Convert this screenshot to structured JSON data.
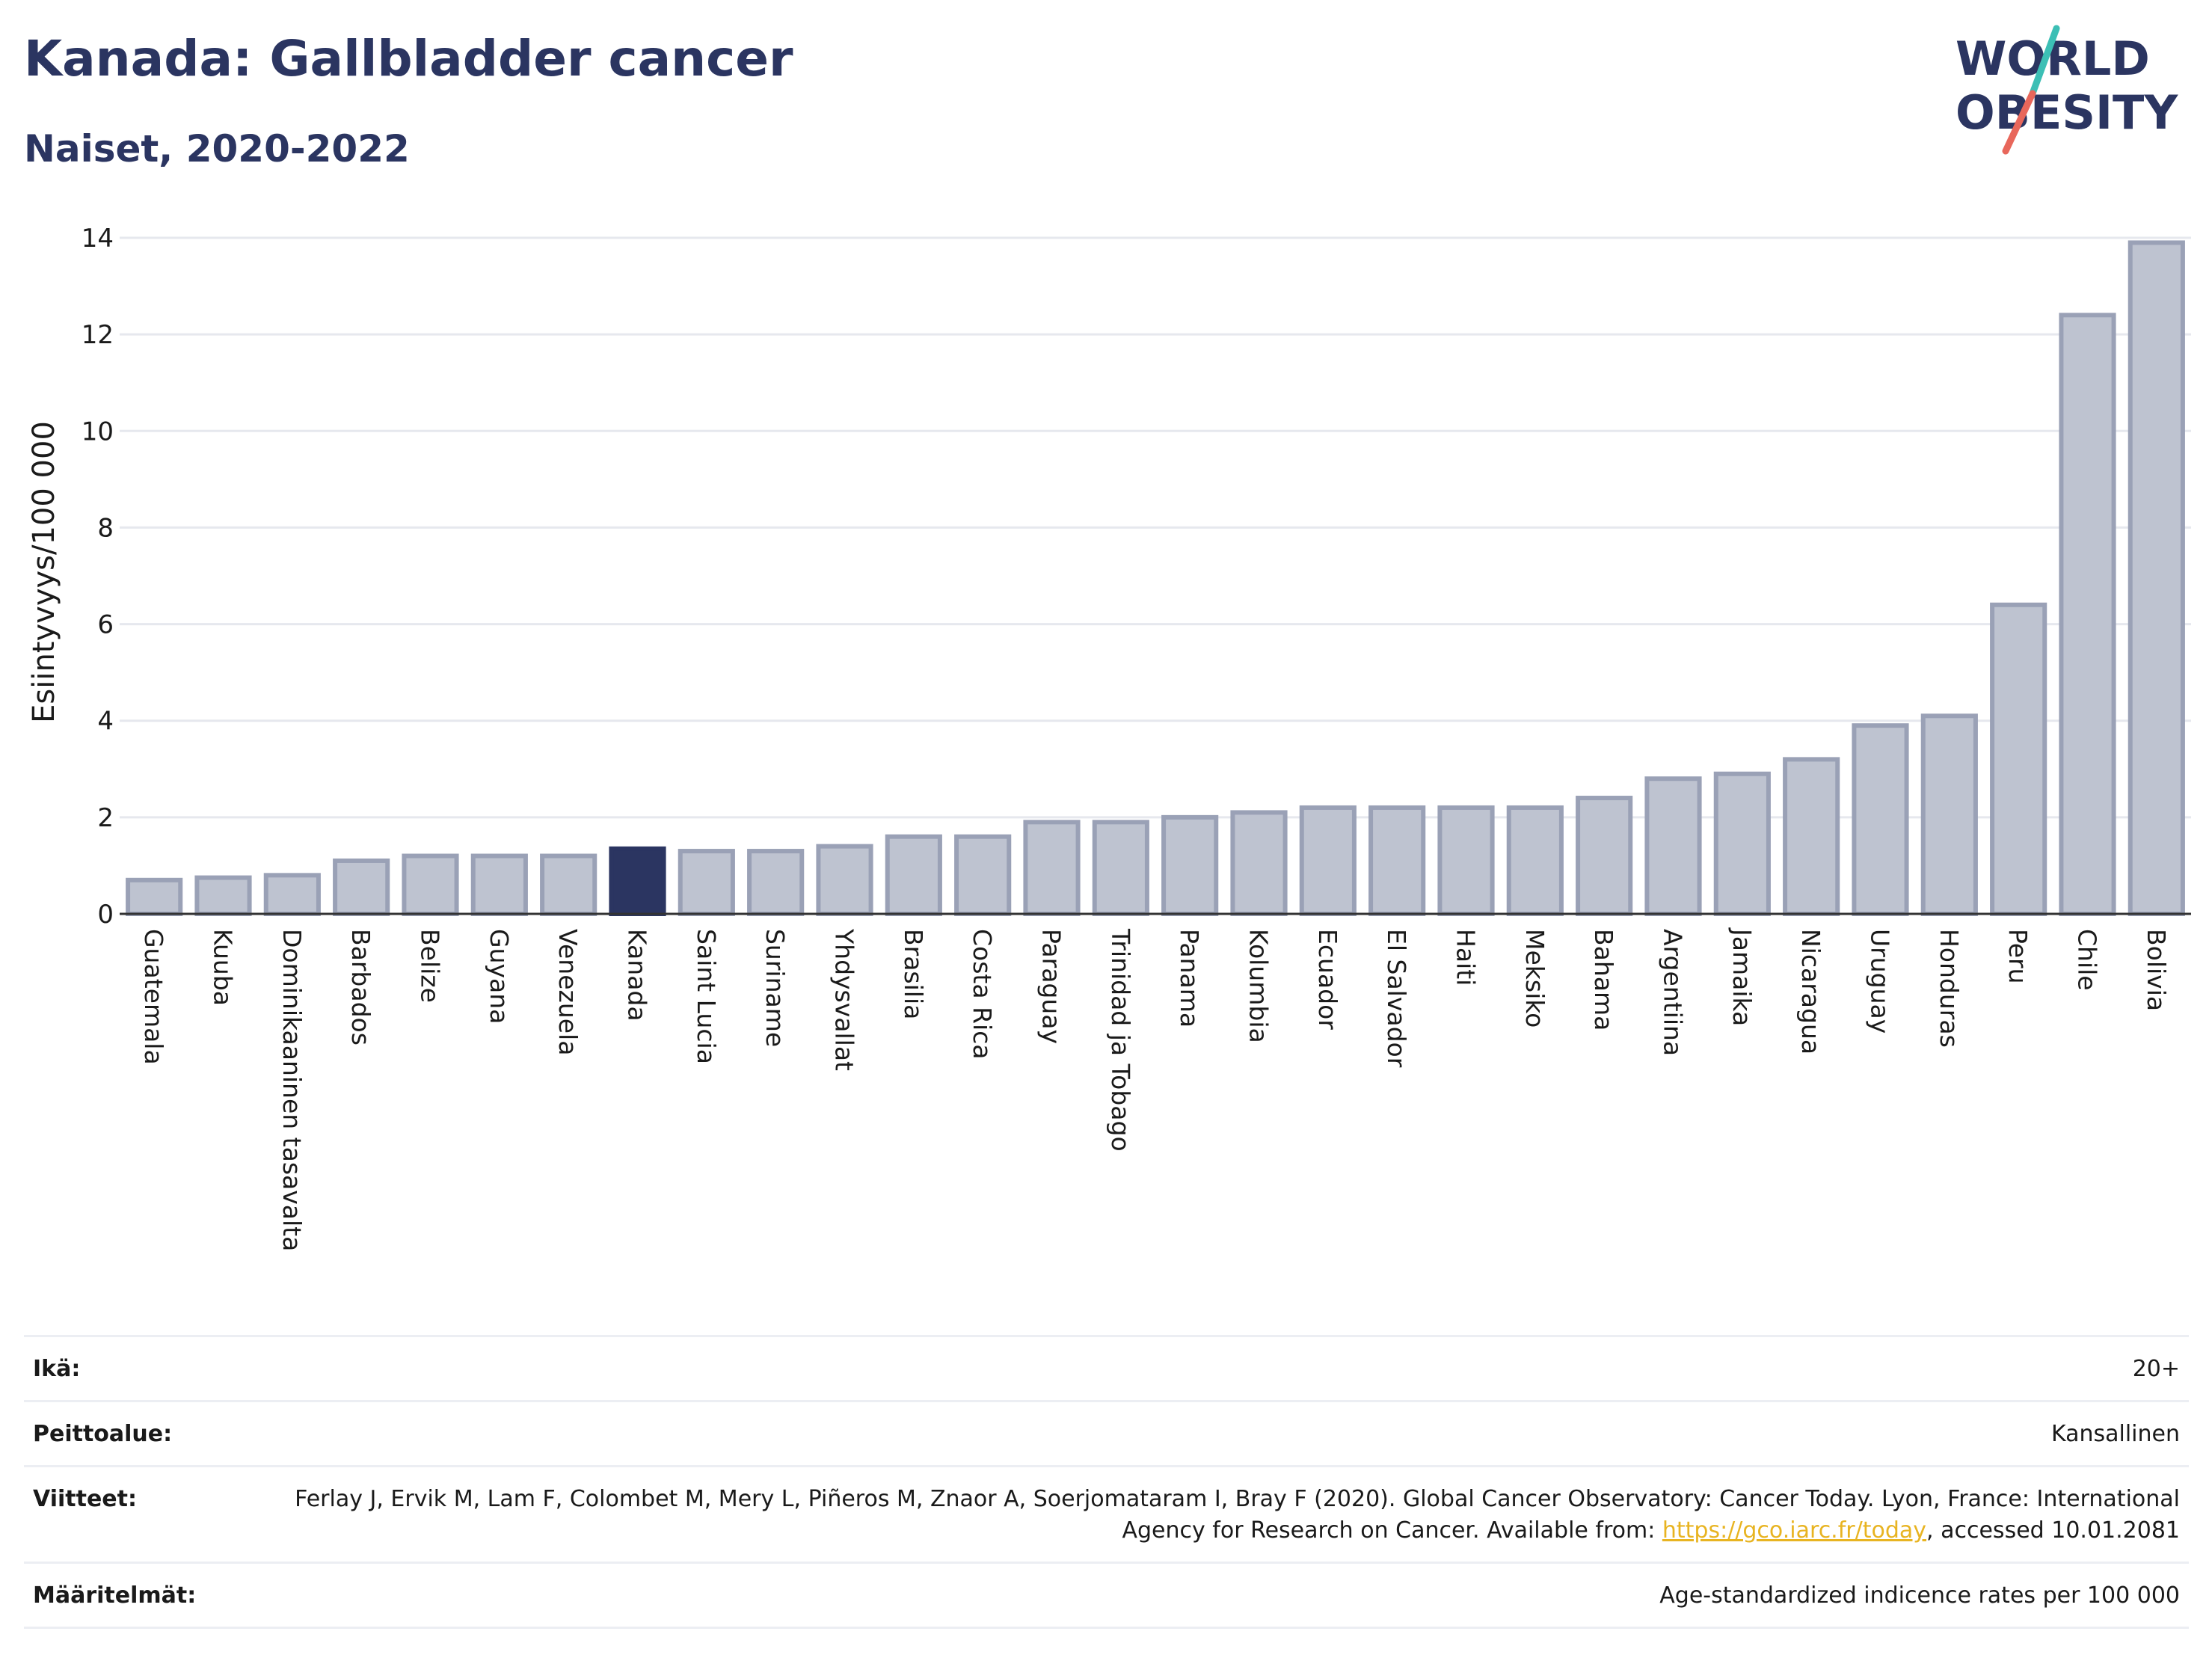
{
  "title": "Kanada: Gallbladder cancer",
  "subtitle": "Naiset, 2020-2022",
  "logo": {
    "line1": "WORLD",
    "line2": "OBESITY",
    "colors": {
      "text": "#2b3561",
      "slash_top": "#3cbfb5",
      "slash_bottom": "#e8675b"
    }
  },
  "colors": {
    "bar": "#bec3d0",
    "bar_stroke": "#9aa1b6",
    "highlight": "#2b3561",
    "grid": "#e6e8ee",
    "axis": "#333333",
    "link": "#e8b422"
  },
  "chart_data": {
    "type": "bar",
    "ylabel": "Esiintyvyys/100 000",
    "ylim": [
      0,
      14
    ],
    "yticks": [
      0,
      2,
      4,
      6,
      8,
      10,
      12,
      14
    ],
    "grid": true,
    "highlight": "Kanada",
    "categories": [
      "Guatemala",
      "Kuuba",
      "Dominikaaninen tasavalta",
      "Barbados",
      "Belize",
      "Guyana",
      "Venezuela",
      "Kanada",
      "Saint Lucia",
      "Suriname",
      "Yhdysvallat",
      "Brasilia",
      "Costa Rica",
      "Paraguay",
      "Trinidad ja Tobago",
      "Panama",
      "Kolumbia",
      "Ecuador",
      "El Salvador",
      "Haiti",
      "Meksiko",
      "Bahama",
      "Argentiina",
      "Jamaika",
      "Nicaragua",
      "Uruguay",
      "Honduras",
      "Peru",
      "Chile",
      "Bolivia"
    ],
    "values": [
      0.7,
      0.75,
      0.8,
      1.1,
      1.2,
      1.2,
      1.2,
      1.35,
      1.3,
      1.3,
      1.4,
      1.6,
      1.6,
      1.9,
      1.9,
      2.0,
      2.1,
      2.2,
      2.2,
      2.2,
      2.2,
      2.4,
      2.8,
      2.9,
      3.2,
      3.9,
      4.1,
      6.4,
      12.4,
      13.9
    ]
  },
  "info": {
    "age_label": "Ikä:",
    "age_value": "20+",
    "coverage_label": "Peittoalue:",
    "coverage_value": "Kansallinen",
    "refs_label": "Viitteet:",
    "refs_text_1": "Ferlay J, Ervik M, Lam F, Colombet M, Mery L, Piñeros M, Znaor A, Soerjomataram I, Bray F (2020). Global Cancer Observatory: Cancer Today. Lyon, France: International Agency for Research on Cancer. Available from: ",
    "refs_link": "https://gco.iarc.fr/today",
    "refs_text_2": ", accessed 10.01.2081",
    "defs_label": "Määritelmät:",
    "defs_value": "Age-standardized indicence rates per 100 000"
  }
}
